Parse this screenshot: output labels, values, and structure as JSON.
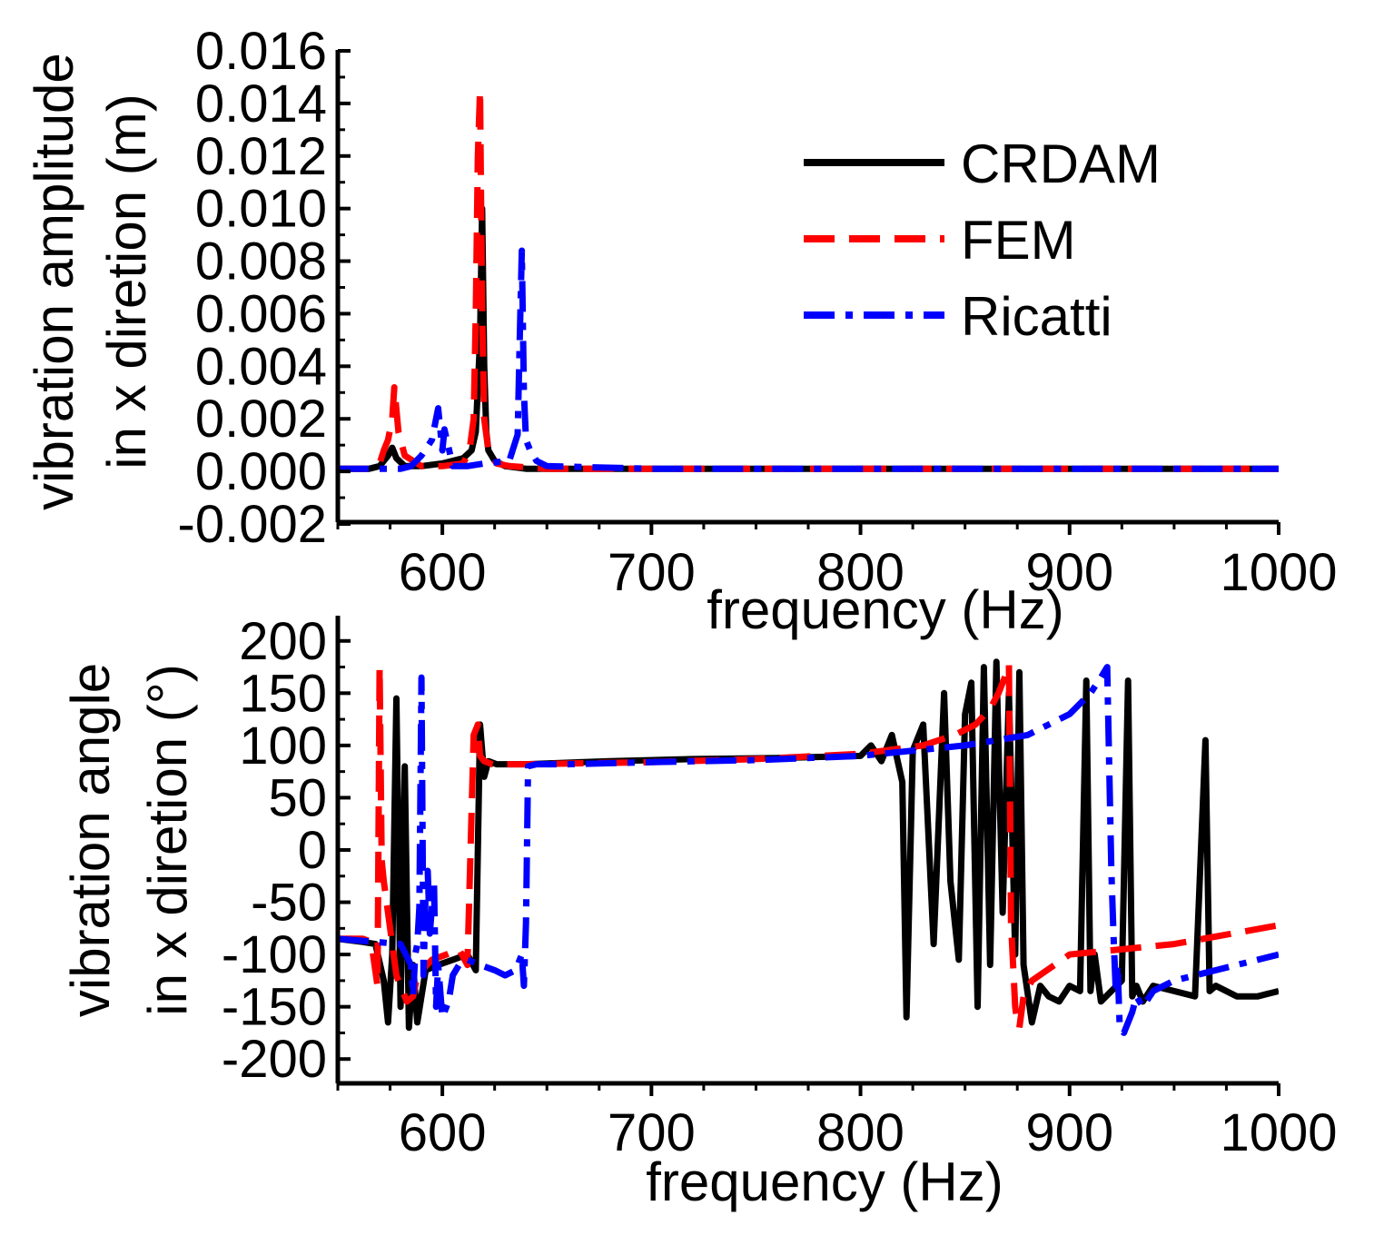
{
  "chart_data": [
    {
      "type": "line",
      "panel": "top",
      "xlabel": "frequency (Hz)",
      "ylabel_lines": [
        "vibration amplitude",
        "in x diretion (m)"
      ],
      "xlim": [
        550,
        1000
      ],
      "ylim": [
        -0.002,
        0.016
      ],
      "xticks": [
        600,
        700,
        800,
        900,
        1000
      ],
      "xtick_labels": [
        "600",
        "700",
        "800",
        "900",
        "1000"
      ],
      "yticks": [
        -0.002,
        0,
        0.002,
        0.004,
        0.006,
        0.008,
        0.01,
        0.012,
        0.014,
        0.016
      ],
      "ytick_labels": [
        "-0.002",
        "0.000",
        "0.002",
        "0.004",
        "0.006",
        "0.008",
        "0.010",
        "0.012",
        "0.014",
        "0.016"
      ],
      "legend": {
        "position": "top-right",
        "entries": [
          "CRDAM",
          "FEM",
          "Ricatti"
        ]
      },
      "series": [
        {
          "name": "CRDAM",
          "color": "#000000",
          "style": "solid",
          "x": [
            550,
            565,
            570,
            574,
            576,
            578,
            582,
            590,
            600,
            610,
            614,
            616,
            618,
            619,
            620,
            621,
            622,
            625,
            630,
            640,
            660,
            700,
            800,
            900,
            1000
          ],
          "y": [
            0.0001,
            0.0001,
            0.0002,
            0.0006,
            0.0009,
            0.0005,
            0.0002,
            0.0002,
            0.0003,
            0.0005,
            0.0008,
            0.0015,
            0.005,
            0.01,
            0.004,
            0.0015,
            0.0008,
            0.0004,
            0.0002,
            0.0001,
            0.0001,
            0.0001,
            0.0001,
            0.0001,
            0.0001
          ]
        },
        {
          "name": "FEM",
          "color": "#ff0000",
          "style": "dashed",
          "x": [
            550,
            565,
            570,
            572,
            574,
            576,
            577,
            579,
            582,
            590,
            600,
            610,
            613,
            615,
            616,
            617,
            618,
            619,
            620,
            622,
            626,
            632,
            650,
            700,
            800,
            900,
            1000
          ],
          "y": [
            0.0001,
            0.0001,
            0.0003,
            0.0008,
            0.0012,
            0.002,
            0.0032,
            0.0015,
            0.0006,
            0.0002,
            0.0002,
            0.0003,
            0.0008,
            0.002,
            0.006,
            0.012,
            0.0145,
            0.006,
            0.002,
            0.0008,
            0.0003,
            0.0002,
            0.0001,
            0.0001,
            0.0001,
            0.0001,
            0.0001
          ]
        },
        {
          "name": "Ricatti",
          "color": "#0000ff",
          "style": "dashdot",
          "x": [
            550,
            570,
            580,
            585,
            590,
            595,
            598,
            600,
            601,
            605,
            612,
            620,
            632,
            636,
            637,
            638,
            639,
            640,
            642,
            645,
            650,
            700,
            800,
            900,
            1000
          ],
          "y": [
            0.0001,
            0.0001,
            0.0001,
            0.0002,
            0.0006,
            0.0012,
            0.0024,
            0.0008,
            0.0016,
            0.0002,
            0.0002,
            0.0003,
            0.0004,
            0.0014,
            0.005,
            0.0084,
            0.003,
            0.0012,
            0.0008,
            0.0004,
            0.0002,
            0.0001,
            0.0001,
            0.0001,
            0.0001
          ]
        }
      ]
    },
    {
      "type": "line",
      "panel": "bottom",
      "xlabel": "frequency (Hz)",
      "ylabel_lines": [
        "vibration angle",
        "in x diretion (°)"
      ],
      "xlim": [
        550,
        1000
      ],
      "ylim": [
        -225,
        225
      ],
      "xticks": [
        600,
        700,
        800,
        900,
        1000
      ],
      "xtick_labels": [
        "600",
        "700",
        "800",
        "900",
        "1000"
      ],
      "yticks": [
        -200,
        -150,
        -100,
        -50,
        0,
        50,
        100,
        150,
        200
      ],
      "ytick_labels": [
        "-200",
        "-150",
        "-100",
        "-50",
        "0",
        "50",
        "100",
        "150",
        "200"
      ],
      "series": [
        {
          "name": "CRDAM",
          "color": "#000000",
          "style": "solid",
          "x": [
            550,
            562,
            568,
            572,
            574,
            576,
            578,
            580,
            582,
            584,
            586,
            588,
            592,
            598,
            605,
            612,
            616,
            618,
            620,
            622,
            626,
            640,
            680,
            720,
            760,
            800,
            805,
            810,
            815,
            820,
            822,
            825,
            830,
            835,
            840,
            843,
            847,
            850,
            853,
            856,
            859,
            862,
            865,
            868,
            871,
            874,
            876,
            878,
            882,
            886,
            890,
            895,
            900,
            905,
            908,
            910,
            912,
            915,
            920,
            925,
            928,
            930,
            932,
            935,
            940,
            950,
            960,
            965,
            967,
            970,
            980,
            990,
            1000
          ],
          "y": [
            -85,
            -88,
            -90,
            -125,
            -165,
            -100,
            145,
            -150,
            80,
            -170,
            -110,
            -165,
            -115,
            -110,
            -105,
            -100,
            -115,
            120,
            70,
            85,
            82,
            82,
            85,
            87,
            88,
            90,
            100,
            85,
            110,
            65,
            -160,
            95,
            120,
            -90,
            150,
            -30,
            -105,
            130,
            160,
            -150,
            175,
            -110,
            180,
            -60,
            150,
            -100,
            170,
            -110,
            -165,
            -130,
            -140,
            -145,
            -130,
            -135,
            162,
            -135,
            -100,
            -145,
            -135,
            -125,
            162,
            -140,
            -130,
            -145,
            -130,
            -135,
            -140,
            105,
            -135,
            -130,
            -140,
            -140,
            -135
          ]
        },
        {
          "name": "FEM",
          "color": "#ff0000",
          "style": "dashed",
          "x": [
            550,
            562,
            566,
            569,
            570,
            571,
            572,
            574,
            578,
            583,
            586,
            588,
            595,
            602,
            608,
            612,
            615,
            617,
            618,
            620,
            624,
            640,
            700,
            750,
            800,
            830,
            845,
            855,
            862,
            866,
            869,
            871,
            872,
            873,
            874,
            875,
            876,
            878,
            882,
            900,
            950,
            1000
          ],
          "y": [
            -85,
            -85,
            -88,
            -130,
            175,
            -10,
            -30,
            -60,
            -120,
            -145,
            -140,
            -120,
            -105,
            -100,
            -95,
            -110,
            110,
            120,
            90,
            85,
            82,
            82,
            84,
            87,
            92,
            100,
            110,
            120,
            135,
            150,
            165,
            178,
            -70,
            -110,
            -150,
            -165,
            -170,
            -140,
            -125,
            -100,
            -90,
            -72
          ]
        },
        {
          "name": "Ricatti",
          "color": "#0000ff",
          "style": "dashdot",
          "x": [
            550,
            580,
            585,
            586,
            587,
            588,
            589,
            590,
            591,
            592,
            593,
            594,
            596,
            597,
            598,
            600,
            603,
            605,
            608,
            612,
            618,
            625,
            630,
            635,
            638,
            639,
            640,
            641,
            645,
            660,
            700,
            750,
            800,
            850,
            880,
            900,
            910,
            915,
            918,
            920,
            921,
            922,
            923,
            924,
            926,
            928,
            930,
            932,
            935,
            940,
            950,
            960,
            970,
            980,
            990,
            1000
          ],
          "y": [
            -85,
            -90,
            -110,
            -140,
            -100,
            -90,
            -55,
            165,
            -120,
            -40,
            -20,
            -80,
            -30,
            -150,
            -110,
            -160,
            -145,
            -120,
            -110,
            -105,
            -110,
            -115,
            -120,
            -115,
            -100,
            -130,
            -70,
            80,
            82,
            82,
            84,
            86,
            90,
            100,
            110,
            130,
            150,
            165,
            175,
            -20,
            -80,
            -130,
            -110,
            -170,
            -175,
            -165,
            -155,
            -140,
            -150,
            -135,
            -125,
            -120,
            -115,
            -110,
            -105,
            -100
          ]
        }
      ]
    }
  ]
}
